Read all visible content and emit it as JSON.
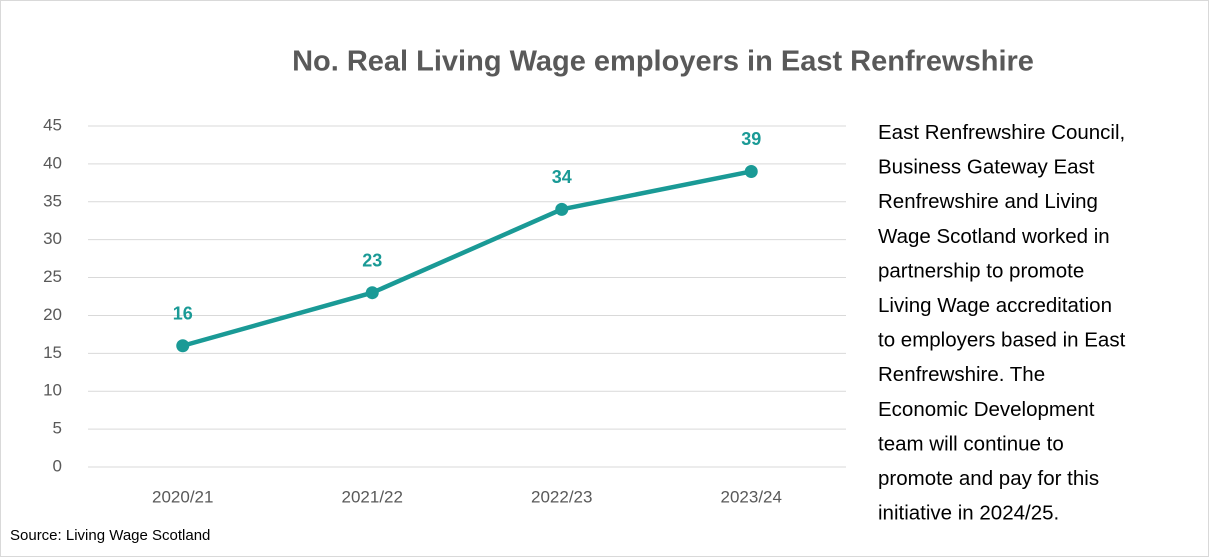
{
  "chart_data": {
    "type": "line",
    "title": "No. Real Living Wage employers in East Renfrewshire",
    "categories": [
      "2020/21",
      "2021/22",
      "2022/23",
      "2023/24"
    ],
    "series": [
      {
        "name": "Real Living Wage employers",
        "color": "#1a9a96",
        "values": [
          16,
          23,
          34,
          39
        ]
      }
    ],
    "ylim": [
      0,
      45
    ],
    "yticks": [
      0,
      5,
      10,
      15,
      20,
      25,
      30,
      35,
      40,
      45
    ],
    "grid": true,
    "source": "Source: Living Wage Scotland"
  },
  "annotation": {
    "lines": [
      "East Renfrewshire Council,",
      "Business Gateway East",
      "Renfrewshire and Living",
      "Wage Scotland worked in",
      "partnership to promote",
      "Living Wage accreditation",
      "to employers based in East",
      "Renfrewshire. The",
      "Economic Development",
      "team will continue to",
      "promote and pay for this",
      "initiative in 2024/25."
    ]
  }
}
